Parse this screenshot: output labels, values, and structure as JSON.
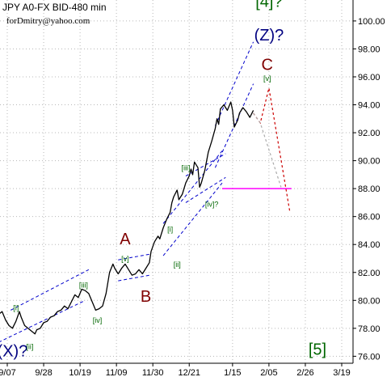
{
  "chart_data": {
    "type": "line",
    "title": "JPY A0-FX BID-480 min",
    "subtitle": "forDmitry@yahoo.com",
    "ylim": [
      75.5,
      101.5
    ],
    "y_ticks": [
      76,
      78,
      80,
      82,
      84,
      86,
      88,
      90,
      92,
      94,
      96,
      98,
      100
    ],
    "y_tick_labels": [
      "76.00",
      "78.00",
      "80.00",
      "82.00",
      "84.00",
      "86.00",
      "88.00",
      "90.00",
      "92.00",
      "94.00",
      "96.00",
      "98.00",
      "100.00"
    ],
    "x_tick_labels": [
      "9/07",
      "9/28",
      "10/19",
      "11/09",
      "11/30",
      "12/21",
      "1/15",
      "2/05",
      "2/26",
      "3/19"
    ],
    "x_tick_days": [
      0,
      21,
      42,
      63,
      84,
      105,
      130,
      151,
      172,
      193
    ],
    "series": [
      {
        "price": [
          [
            -5,
            79.0
          ],
          [
            -3,
            79.2
          ],
          [
            -1,
            78.6
          ],
          [
            1,
            78.2
          ],
          [
            3,
            78.0
          ],
          [
            5,
            78.5
          ],
          [
            7,
            79.2
          ],
          [
            8,
            78.8
          ],
          [
            10,
            78.2
          ],
          [
            12,
            78.0
          ],
          [
            14,
            77.8
          ],
          [
            16,
            77.6
          ],
          [
            17,
            77.9
          ],
          [
            19,
            78.0
          ],
          [
            21,
            78.4
          ],
          [
            23,
            78.5
          ],
          [
            25,
            78.8
          ],
          [
            27,
            78.9
          ],
          [
            29,
            79.2
          ],
          [
            31,
            79.3
          ],
          [
            33,
            79.6
          ],
          [
            35,
            79.4
          ],
          [
            37,
            79.9
          ],
          [
            39,
            80.4
          ],
          [
            41,
            80.2
          ],
          [
            43,
            80.8
          ],
          [
            45,
            80.7
          ],
          [
            47,
            80.5
          ],
          [
            49,
            79.9
          ],
          [
            50,
            79.6
          ],
          [
            51,
            79.3
          ],
          [
            53,
            79.4
          ],
          [
            55,
            79.6
          ],
          [
            57,
            80.5
          ],
          [
            59,
            82.0
          ],
          [
            61,
            82.6
          ],
          [
            62,
            82.3
          ],
          [
            64,
            81.9
          ],
          [
            66,
            82.3
          ],
          [
            68,
            82.6
          ],
          [
            70,
            82.2
          ],
          [
            72,
            81.8
          ],
          [
            74,
            81.9
          ],
          [
            76,
            82.2
          ],
          [
            78,
            81.9
          ],
          [
            80,
            82.3
          ],
          [
            82,
            82.7
          ],
          [
            83,
            83.5
          ],
          [
            85,
            84.2
          ],
          [
            87,
            84.6
          ],
          [
            88,
            84.4
          ],
          [
            90,
            85.2
          ],
          [
            92,
            85.8
          ],
          [
            94,
            86.3
          ],
          [
            95,
            87.0
          ],
          [
            96,
            87.4
          ],
          [
            98,
            87.9
          ],
          [
            99,
            87.2
          ],
          [
            101,
            87.6
          ],
          [
            103,
            88.4
          ],
          [
            105,
            88.9
          ],
          [
            106,
            89.4
          ],
          [
            107,
            89.0
          ],
          [
            108,
            89.9
          ],
          [
            110,
            89.5
          ],
          [
            111,
            88.1
          ],
          [
            112,
            88.4
          ],
          [
            114,
            89.3
          ],
          [
            116,
            90.6
          ],
          [
            118,
            91.4
          ],
          [
            120,
            92.3
          ],
          [
            121,
            93.0
          ],
          [
            122,
            92.6
          ],
          [
            123,
            93.7
          ],
          [
            125,
            94.0
          ],
          [
            127,
            93.6
          ],
          [
            129,
            94.2
          ],
          [
            130,
            93.6
          ],
          [
            131,
            92.4
          ],
          [
            133,
            92.9
          ],
          [
            134,
            93.4
          ],
          [
            136,
            93.8
          ],
          [
            138,
            93.5
          ],
          [
            140,
            93.1
          ],
          [
            142,
            93.6
          ]
        ],
        "color": "#000000"
      }
    ],
    "projections": [
      {
        "points": [
          [
            142,
            93.4
          ],
          [
            146,
            92.7
          ],
          [
            151,
            95.2
          ],
          [
            163,
            86.4
          ]
        ],
        "color": "#cc0000"
      },
      {
        "points": [
          [
            142,
            93.4
          ],
          [
            146,
            92.7
          ],
          [
            158,
            88.1
          ]
        ],
        "color": "#aaaaaa"
      }
    ],
    "level_line": {
      "value": 88.0,
      "from_day": 124,
      "to_day": 164,
      "color": "#ff00ff"
    },
    "channels": [
      {
        "a": [
          [
            -5,
            77.0
          ],
          [
            45,
            80.0
          ]
        ],
        "b": [
          [
            2,
            79.3
          ],
          [
            47,
            82.2
          ]
        ],
        "color": "#0000cc"
      },
      {
        "a": [
          [
            64,
            81.4
          ],
          [
            82,
            81.8
          ]
        ],
        "b": [
          [
            64,
            82.9
          ],
          [
            82,
            83.3
          ]
        ],
        "color": "#0000cc"
      },
      {
        "a": [
          [
            90,
            83.2
          ],
          [
            124,
            88.4
          ]
        ],
        "b": [
          [
            90,
            85.5
          ],
          [
            124,
            90.7
          ]
        ],
        "color": "#0000cc"
      },
      {
        "a": [
          [
            103,
            87.0
          ],
          [
            126,
            88.8
          ]
        ],
        "b": [
          [
            103,
            88.9
          ],
          [
            126,
            90.5
          ]
        ],
        "color": "#0000cc"
      },
      {
        "a": [
          [
            120,
            89.5
          ],
          [
            142,
            95.5
          ]
        ],
        "b": [
          [
            120,
            92.5
          ],
          [
            142,
            98.5
          ]
        ],
        "color": "#0000cc"
      }
    ],
    "annotations": [
      {
        "text": "[4]?",
        "day": 151,
        "y": 101.0,
        "color": "#006600",
        "size": "big"
      },
      {
        "text": "(Z)?",
        "day": 151,
        "y": 98.6,
        "color": "#000080",
        "size": "big"
      },
      {
        "text": "C",
        "day": 150,
        "y": 96.5,
        "color": "#800000",
        "size": "big"
      },
      {
        "text": "[v]",
        "day": 150,
        "y": 95.7,
        "color": "#006600",
        "size": "small"
      },
      {
        "text": "[iii]",
        "day": 103,
        "y": 89.3,
        "color": "#006600",
        "size": "small"
      },
      {
        "text": "[iv]?",
        "day": 118,
        "y": 86.7,
        "color": "#006600",
        "size": "small"
      },
      {
        "text": "[i]",
        "day": 94,
        "y": 84.9,
        "color": "#006600",
        "size": "small"
      },
      {
        "text": "[ii]",
        "day": 98,
        "y": 82.4,
        "color": "#006600",
        "size": "small"
      },
      {
        "text": "A",
        "day": 68,
        "y": 84.0,
        "color": "#800000",
        "size": "big"
      },
      {
        "text": "[v]",
        "day": 68,
        "y": 82.8,
        "color": "#006600",
        "size": "small"
      },
      {
        "text": "B",
        "day": 80,
        "y": 79.9,
        "color": "#800000",
        "size": "big"
      },
      {
        "text": "[iii]",
        "day": 44,
        "y": 80.9,
        "color": "#006600",
        "size": "small"
      },
      {
        "text": "[iv]",
        "day": 52,
        "y": 78.4,
        "color": "#006600",
        "size": "small"
      },
      {
        "text": "[i]",
        "day": 5,
        "y": 79.3,
        "color": "#006600",
        "size": "small"
      },
      {
        "text": "(X)?",
        "day": 3,
        "y": 76.0,
        "color": "#000080",
        "size": "big"
      },
      {
        "text": "[ii]",
        "day": 13,
        "y": 76.5,
        "color": "#006600",
        "size": "small"
      },
      {
        "text": "[5]",
        "day": 179,
        "y": 76.1,
        "color": "#006600",
        "size": "big"
      }
    ]
  }
}
